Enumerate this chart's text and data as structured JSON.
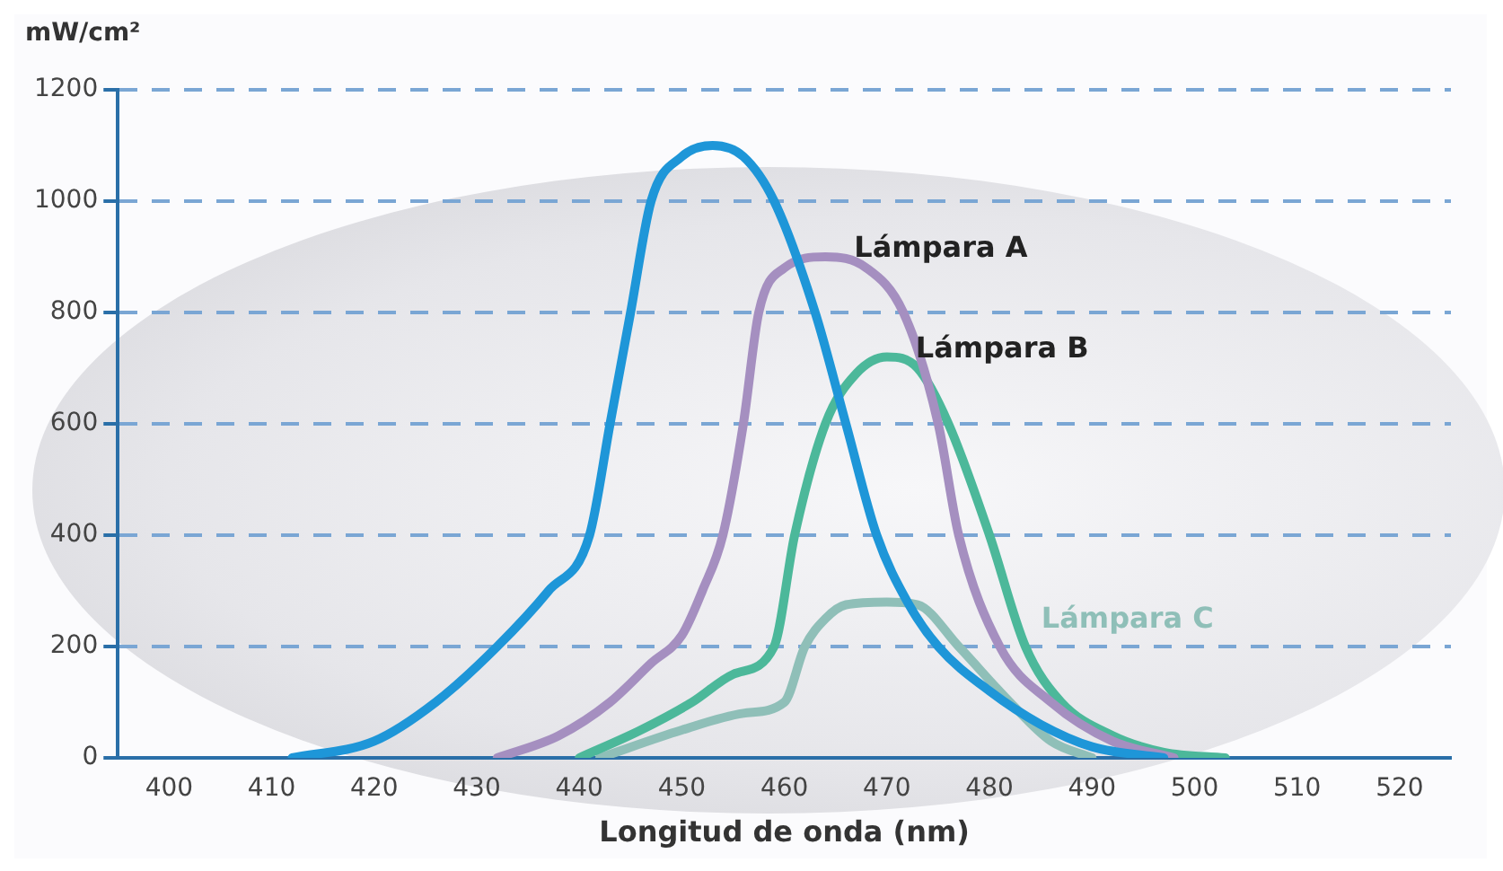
{
  "chart_data": {
    "type": "line",
    "ylabel": "mW/cm²",
    "xlabel": "Longitud de onda (nm)",
    "xlim": [
      395,
      525
    ],
    "xticks": [
      400,
      410,
      420,
      430,
      440,
      450,
      460,
      470,
      480,
      490,
      500,
      510,
      520
    ],
    "ylim": [
      0,
      1200
    ],
    "yticks": [
      0,
      200,
      400,
      600,
      800,
      1000,
      1200
    ],
    "grid": "y",
    "legend": false,
    "marker": "none",
    "series": [
      {
        "color": "#1e96d8",
        "x": [
          412,
          420,
          426,
          432,
          437,
          441,
          443,
          445,
          447,
          450,
          453,
          456,
          459,
          463,
          466,
          469,
          472,
          475,
          480,
          485,
          490,
          497
        ],
        "values": [
          0,
          30,
          100,
          200,
          300,
          400,
          600,
          800,
          1000,
          1080,
          1100,
          1080,
          1000,
          800,
          600,
          400,
          280,
          200,
          120,
          60,
          20,
          0
        ]
      },
      {
        "name": "Lámpara A",
        "color": "#a58fc0",
        "x": [
          432,
          438,
          443,
          447,
          450,
          452,
          454,
          456,
          457.5,
          460,
          464,
          468,
          471.6,
          475,
          477,
          481,
          486,
          492,
          498
        ],
        "values": [
          0,
          40,
          100,
          170,
          220,
          300,
          400,
          600,
          800,
          880,
          900,
          880,
          800,
          600,
          400,
          200,
          100,
          30,
          0
        ]
      },
      {
        "name": "Lámpara B",
        "color": "#4cb89a",
        "x": [
          440,
          446,
          451,
          455,
          459,
          461,
          464,
          467,
          470,
          473,
          476,
          480,
          483.5,
          487,
          492,
          497,
          503
        ],
        "values": [
          0,
          50,
          100,
          150,
          200,
          400,
          600,
          690,
          720,
          700,
          600,
          400,
          200,
          100,
          40,
          10,
          0
        ]
      },
      {
        "name": "Lámpara C",
        "color": "#8fbfb8",
        "x": [
          442,
          450,
          456,
          460,
          462,
          464,
          466,
          470,
          473,
          477,
          482,
          486,
          490
        ],
        "values": [
          0,
          50,
          80,
          100,
          200,
          250,
          275,
          280,
          275,
          200,
          100,
          30,
          0
        ]
      }
    ]
  }
}
